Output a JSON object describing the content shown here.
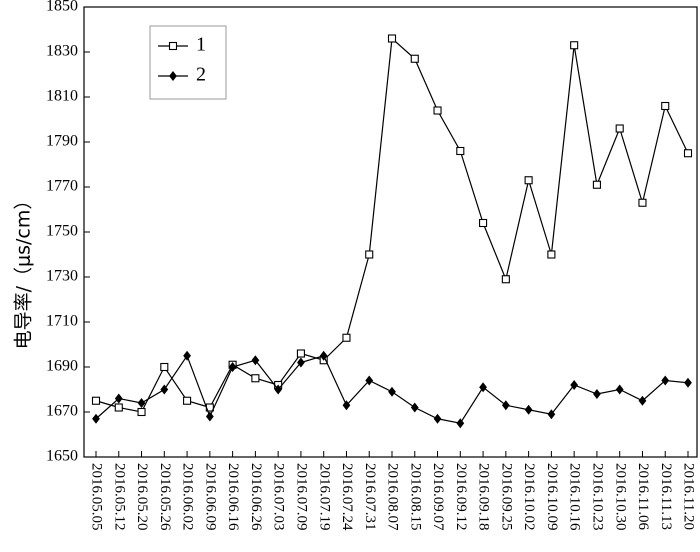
{
  "chart_data": {
    "type": "line",
    "ylabel": "电导率/（μs/cm）",
    "xlabel": "",
    "ylim": [
      1650,
      1850
    ],
    "yticks": [
      1650,
      1670,
      1690,
      1710,
      1730,
      1750,
      1770,
      1790,
      1810,
      1830,
      1850
    ],
    "categories": [
      "2016.05.05",
      "2016.05.12",
      "2016.05.20",
      "2016.05.26",
      "2016.06.02",
      "2016.06.09",
      "2016.06.16",
      "2016.06.26",
      "2016.07.03",
      "2016.07.09",
      "2016.07.19",
      "2016.07.24",
      "2016.07.31",
      "2016.08.07",
      "2016.08.15",
      "2016.09.07",
      "2016.09.12",
      "2016.09.18",
      "2016.09.25",
      "2016.10.02",
      "2016.10.09",
      "2016.10.16",
      "2016.10.23",
      "2016.10.30",
      "2016.11.06",
      "2016.11.13",
      "2016.11.20"
    ],
    "series": [
      {
        "name": "1",
        "marker": "open-square",
        "color": "#000000",
        "values": [
          1675,
          1672,
          1670,
          1690,
          1675,
          1672,
          1691,
          1685,
          1682,
          1696,
          1693,
          1703,
          1740,
          1836,
          1827,
          1804,
          1786,
          1754,
          1729,
          1773,
          1740,
          1833,
          1771,
          1796,
          1763,
          1806,
          1785
        ]
      },
      {
        "name": "2",
        "marker": "filled-diamond",
        "color": "#000000",
        "values": [
          1667,
          1676,
          1674,
          1680,
          1695,
          1668,
          1690,
          1693,
          1680,
          1692,
          1695,
          1673,
          1684,
          1679,
          1672,
          1667,
          1665,
          1681,
          1673,
          1671,
          1669,
          1682,
          1678,
          1680,
          1675,
          1684,
          1683
        ]
      }
    ],
    "grid": false,
    "legend": "top-left"
  }
}
